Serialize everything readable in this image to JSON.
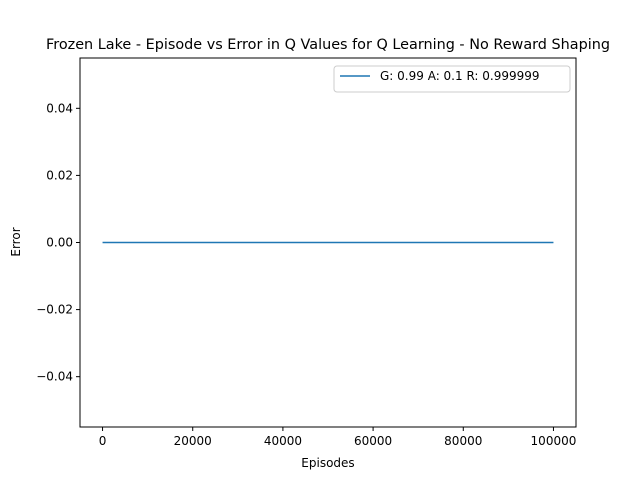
{
  "chart_data": {
    "type": "line",
    "title": "Frozen Lake - Episode vs Error in Q Values for Q Learning - No Reward Shaping",
    "xlabel": "Episodes",
    "ylabel": "Error",
    "xlim": [
      -5000,
      105000
    ],
    "ylim": [
      -0.055,
      0.055
    ],
    "xticks": [
      0,
      20000,
      40000,
      60000,
      80000,
      100000
    ],
    "xtick_labels": [
      "0",
      "20000",
      "40000",
      "60000",
      "80000",
      "100000"
    ],
    "yticks": [
      -0.04,
      -0.02,
      0.0,
      0.02,
      0.04
    ],
    "ytick_labels": [
      "−0.04",
      "−0.02",
      "0.00",
      "0.02",
      "0.04"
    ],
    "grid": false,
    "legend_position": "top-right",
    "series": [
      {
        "name": "G: 0.99 A: 0.1 R: 0.999999",
        "color": "#1f77b4",
        "x": [
          0,
          100000
        ],
        "y": [
          0.0,
          0.0
        ]
      }
    ]
  }
}
